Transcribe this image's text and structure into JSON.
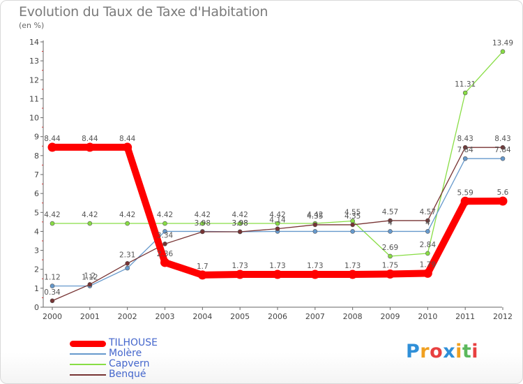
{
  "header": {
    "title": "Evolution du Taux de Taxe d'Habitation",
    "subtitle": "(en %)"
  },
  "logo": {
    "text": "Proxiti",
    "letters": [
      {
        "ch": "P",
        "color": "#2f8fd8"
      },
      {
        "ch": "r",
        "color": "#f0a020"
      },
      {
        "ch": "o",
        "color": "#e84040"
      },
      {
        "ch": "x",
        "color": "#2f8fd8"
      },
      {
        "ch": "i",
        "color": "#f0a020"
      },
      {
        "ch": "t",
        "color": "#5cb85c"
      },
      {
        "ch": "i",
        "color": "#e84040"
      }
    ]
  },
  "chart_data": {
    "type": "line",
    "title": "Evolution du Taux de Taxe d'Habitation",
    "subtitle": "(en %)",
    "x": [
      "2000",
      "2001",
      "2002",
      "2003",
      "2004",
      "2005",
      "2006",
      "2007",
      "2008",
      "2009",
      "2010",
      "2011",
      "2012"
    ],
    "ylim": [
      0,
      14
    ],
    "yticks": [
      "0",
      "1",
      "2",
      "3",
      "4",
      "5",
      "6",
      "7",
      "8",
      "9",
      "10",
      "11",
      "12",
      "13",
      "14"
    ],
    "grid": false,
    "legend_position": "bottom-left",
    "series": [
      {
        "name": "TILHOUSE",
        "color": "#ff0000",
        "values": [
          8.44,
          8.44,
          8.44,
          2.36,
          1.7,
          1.73,
          1.73,
          1.73,
          1.73,
          1.75,
          1.79,
          5.59,
          5.6
        ],
        "labels": [
          "8.44",
          "8.44",
          "8.44",
          "2.36",
          "1.7",
          "1.73",
          "1.73",
          "1.73",
          "1.73",
          "1.75",
          "1.79",
          "5.59",
          "5.6"
        ]
      },
      {
        "name": "Molère",
        "color": "#6699cc",
        "values": [
          1.12,
          1.12,
          2.06,
          4.0,
          4.0,
          3.98,
          4.0,
          4.0,
          4.0,
          4.0,
          4.0,
          7.84,
          7.84
        ],
        "labels": [
          "1.12",
          "1.12",
          "",
          "",
          "",
          "3.98",
          "",
          "",
          "",
          "4",
          "4",
          "7.84",
          "7.84"
        ]
      },
      {
        "name": "Capvern",
        "color": "#88dd44",
        "values": [
          4.42,
          4.42,
          4.42,
          4.42,
          4.42,
          4.42,
          4.42,
          4.42,
          4.55,
          2.69,
          2.84,
          11.31,
          13.49
        ],
        "labels": [
          "4.42",
          "4.42",
          "4.42",
          "4.42",
          "4.42",
          "4.42",
          "4.42",
          "4.42",
          "4.55",
          "2.69",
          "2.84",
          "11.31",
          "13.49"
        ]
      },
      {
        "name": "Benqué",
        "color": "#773333",
        "values": [
          0.34,
          1.2,
          2.31,
          3.34,
          3.98,
          3.98,
          4.14,
          4.35,
          4.35,
          4.57,
          4.57,
          8.43,
          8.43
        ],
        "labels": [
          "0.34",
          "1.2",
          "2.31",
          "3.34",
          "3.98",
          "3.98",
          "4.14",
          "4.35",
          "4.35",
          "4.57",
          "4.57",
          "8.43",
          "8.43"
        ]
      }
    ]
  }
}
